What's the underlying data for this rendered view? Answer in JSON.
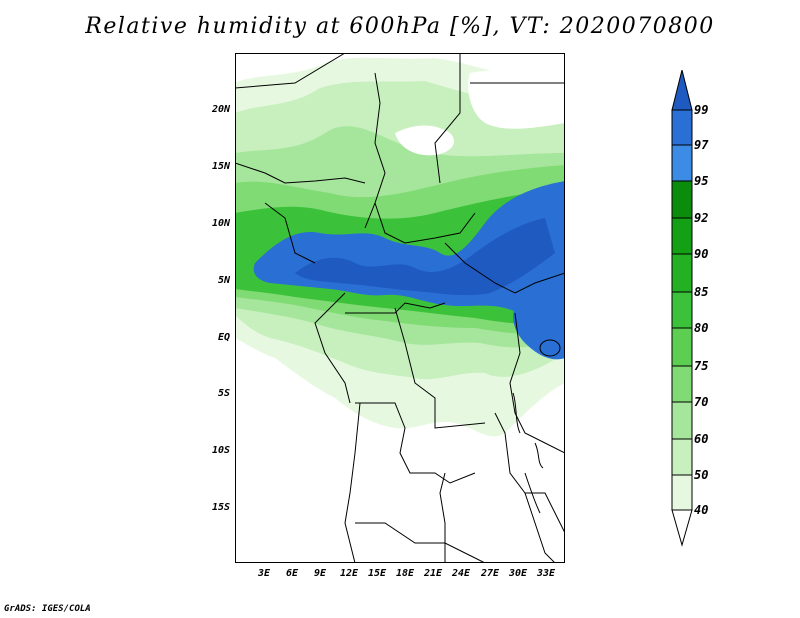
{
  "title": "Relative humidity at 600hPa [%], VT: 2020070800",
  "credit": "GrADS: IGES/COLA",
  "y_axis_labels": [
    "20N",
    "15N",
    "10N",
    "5N",
    "EQ",
    "5S",
    "10S",
    "15S"
  ],
  "x_axis_labels": [
    "3E",
    "6E",
    "9E",
    "12E",
    "15E",
    "18E",
    "21E",
    "24E",
    "27E",
    "30E",
    "33E"
  ],
  "colorbar": {
    "levels": [
      "40",
      "50",
      "60",
      "70",
      "75",
      "80",
      "85",
      "90",
      "92",
      "95",
      "97",
      "99"
    ],
    "colors": [
      "#ffffff",
      "#e6f9e0",
      "#c8f0be",
      "#a6e69c",
      "#80db74",
      "#5ccf52",
      "#3cc23a",
      "#23b023",
      "#14a014",
      "#0c8c0c",
      "#3c8ce6",
      "#2a6fd4",
      "#1e5ac0"
    ]
  },
  "map": {
    "field": "Relative humidity",
    "level": "600hPa",
    "units": "%",
    "valid_time": "2020070800",
    "lat_range": [
      "19S",
      "24N"
    ],
    "lon_range": [
      "0E",
      "35E"
    ]
  }
}
